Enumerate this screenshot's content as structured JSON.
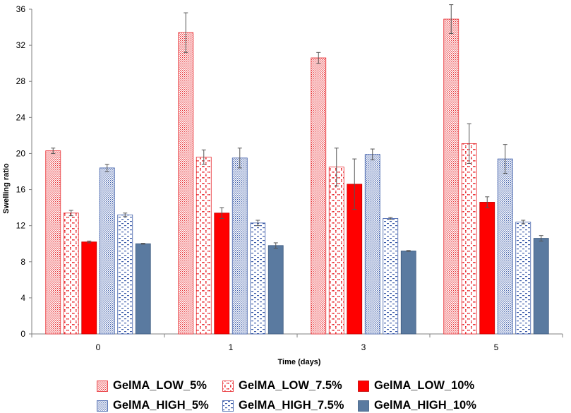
{
  "chart_data": {
    "type": "bar",
    "title": "",
    "xlabel": "Time (days)",
    "ylabel": "Swelling ratio",
    "ylim": [
      0,
      36
    ],
    "yticks": [
      0,
      4,
      8,
      12,
      16,
      20,
      24,
      28,
      32,
      36
    ],
    "categories": [
      "0",
      "1",
      "3",
      "5"
    ],
    "legend_position": "bottom",
    "series": [
      {
        "name": "GelMA_LOW_5%",
        "pattern": "dense-dots",
        "color": "#e8262b",
        "values": [
          20.3,
          33.4,
          30.6,
          34.9
        ],
        "errors": [
          0.3,
          2.2,
          0.6,
          1.6
        ]
      },
      {
        "name": "GelMA_LOW_7.5%",
        "pattern": "diamond-dots",
        "color": "#e8262b",
        "values": [
          13.4,
          19.6,
          18.5,
          21.1
        ],
        "errors": [
          0.3,
          0.8,
          2.1,
          2.2
        ]
      },
      {
        "name": "GelMA_LOW_10%",
        "pattern": "solid",
        "color": "#ff0000",
        "values": [
          10.2,
          13.4,
          16.6,
          14.6
        ],
        "errors": [
          0.1,
          0.6,
          2.8,
          0.6
        ]
      },
      {
        "name": "GelMA_HIGH_5%",
        "pattern": "dense-dots",
        "color": "#3a5aa8",
        "values": [
          18.4,
          19.5,
          19.9,
          19.4
        ],
        "errors": [
          0.4,
          1.1,
          0.6,
          1.6
        ]
      },
      {
        "name": "GelMA_HIGH_7.5%",
        "pattern": "dashes",
        "color": "#3a5aa8",
        "values": [
          13.2,
          12.3,
          12.8,
          12.4
        ],
        "errors": [
          0.2,
          0.3,
          0.1,
          0.2
        ]
      },
      {
        "name": "GelMA_HIGH_10%",
        "pattern": "solid",
        "color": "#5a7aa0",
        "values": [
          10.0,
          9.8,
          9.2,
          10.6
        ],
        "errors": [
          0.05,
          0.3,
          0.05,
          0.3
        ]
      }
    ]
  }
}
